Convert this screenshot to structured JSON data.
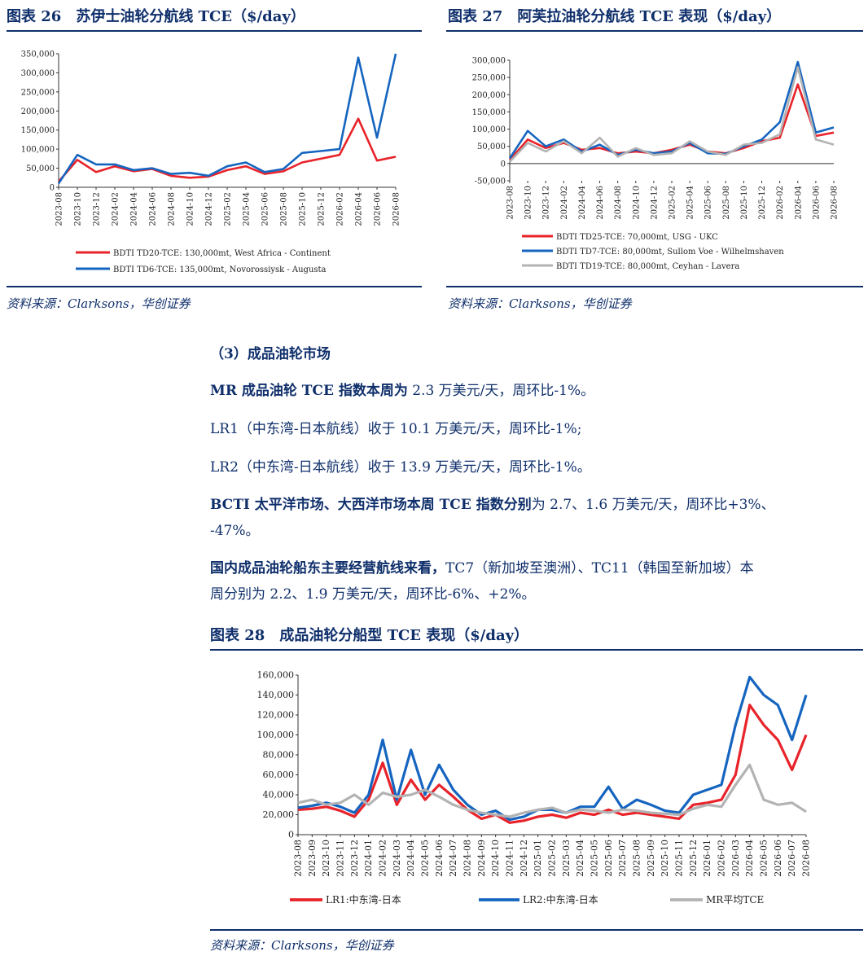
{
  "fig26": {
    "title": "图表 26　苏伊士油轮分航线 TCE（$/day）",
    "source": "资料来源：Clarksons，华创证券",
    "chart_data": {
      "type": "line",
      "x": [
        "2023-08",
        "2023-10",
        "2023-12",
        "2024-02",
        "2024-04",
        "2024-06",
        "2024-08",
        "2024-10",
        "2024-12",
        "2025-02",
        "2025-04",
        "2025-06",
        "2025-08",
        "2025-10",
        "2025-12",
        "2026-02",
        "2026-04",
        "2026-06",
        "2026-08"
      ],
      "yticks": [
        "0",
        "50,000",
        "100,000",
        "150,000",
        "200,000",
        "250,000",
        "300,000",
        "350,000"
      ],
      "ylim": [
        0,
        350000
      ],
      "series": [
        {
          "name": "BDTI TD20-TCE: 130,000mt, West Africa - Continent",
          "color": "#e8232a",
          "values": [
            15000,
            72000,
            40000,
            55000,
            42000,
            48000,
            30000,
            25000,
            28000,
            45000,
            55000,
            35000,
            42000,
            65000,
            75000,
            85000,
            180000,
            70000,
            80000
          ]
        },
        {
          "name": "BDTI TD6-TCE:  135,000mt, Novorossiysk - Augusta",
          "color": "#1565c0",
          "values": [
            10000,
            85000,
            60000,
            60000,
            45000,
            50000,
            35000,
            38000,
            30000,
            55000,
            65000,
            40000,
            48000,
            90000,
            95000,
            100000,
            340000,
            130000,
            350000
          ]
        }
      ]
    }
  },
  "fig27": {
    "title": "图表 27　阿芙拉油轮分航线 TCE 表现（$/day）",
    "source": "资料来源：Clarksons，华创证券",
    "chart_data": {
      "type": "line",
      "x": [
        "2023-08",
        "2023-10",
        "2023-12",
        "2024-02",
        "2024-04",
        "2024-06",
        "2024-08",
        "2024-10",
        "2024-12",
        "2025-02",
        "2025-04",
        "2025-06",
        "2025-08",
        "2025-10",
        "2025-12",
        "2026-02",
        "2026-04",
        "2026-06",
        "2026-08"
      ],
      "yticks": [
        "-50,000",
        "0",
        "50,000",
        "100,000",
        "150,000",
        "200,000",
        "250,000",
        "300,000"
      ],
      "ylim": [
        -50000,
        300000
      ],
      "series": [
        {
          "name": "BDTI TD25-TCE: 70,000mt, USG - UKC",
          "color": "#e8232a",
          "values": [
            10000,
            70000,
            45000,
            60000,
            40000,
            45000,
            30000,
            35000,
            30000,
            40000,
            55000,
            35000,
            30000,
            45000,
            65000,
            75000,
            230000,
            80000,
            90000
          ]
        },
        {
          "name": "BDTI TD7-TCE:  80,000mt, Sullom Voe - Wilhelmshaven",
          "color": "#1565c0",
          "values": [
            15000,
            95000,
            50000,
            70000,
            35000,
            55000,
            25000,
            40000,
            30000,
            35000,
            60000,
            30000,
            28000,
            50000,
            70000,
            120000,
            295000,
            90000,
            105000
          ]
        },
        {
          "name": "BDTI TD19-TCE: 80,000mt, Ceyhan - Lavera",
          "color": "#b3b3b3",
          "values": [
            5000,
            60000,
            35000,
            65000,
            30000,
            75000,
            20000,
            45000,
            25000,
            30000,
            65000,
            35000,
            25000,
            55000,
            60000,
            85000,
            280000,
            70000,
            55000
          ]
        }
      ]
    }
  },
  "section": {
    "heading": "（3）成品油轮市场",
    "p1_bold": "MR 成品油轮 TCE 指数本周为",
    "p1_rest": " 2.3 万美元/天，周环比-1%。",
    "p2": "LR1（中东湾-日本航线）收于 10.1 万美元/天，周环比-1%;",
    "p3": "LR2（中东湾-日本航线）收于 13.9 万美元/天，周环比-1%。",
    "p4_bold": "BCTI 太平洋市场、大西洋市场本周 TCE 指数分别",
    "p4_rest": "为 2.7、1.6 万美元/天，周环比+3%、",
    "p4_line2": "-47%。",
    "p5_bold": "国内成品油轮船东主要经营航线来看，",
    "p5_rest": "TC7（新加坡至澳洲）、TC11（韩国至新加坡）本",
    "p5_line2": "周分别为 2.2、1.9 万美元/天，周环比-6%、+2%。"
  },
  "fig28": {
    "title": "图表 28　成品油轮分船型 TCE 表现（$/day）",
    "source": "资料来源：Clarksons，华创证券",
    "chart_data": {
      "type": "line",
      "x": [
        "2023-08",
        "2023-09",
        "2023-10",
        "2023-11",
        "2023-12",
        "2024-01",
        "2024-02",
        "2024-03",
        "2024-04",
        "2024-05",
        "2024-06",
        "2024-07",
        "2024-08",
        "2024-09",
        "2024-10",
        "2024-11",
        "2024-12",
        "2025-01",
        "2025-02",
        "2025-03",
        "2025-04",
        "2025-05",
        "2025-06",
        "2025-07",
        "2025-08",
        "2025-09",
        "2025-10",
        "2025-11",
        "2025-12",
        "2026-01",
        "2026-02",
        "2026-03",
        "2026-04",
        "2026-05",
        "2026-06",
        "2026-07",
        "2026-08"
      ],
      "yticks": [
        "0",
        "20,000",
        "40,000",
        "60,000",
        "80,000",
        "100,000",
        "120,000",
        "140,000",
        "160,000"
      ],
      "ylim": [
        0,
        160000
      ],
      "series": [
        {
          "name": "LR1:中东湾-日本",
          "color": "#e8232a",
          "values": [
            25000,
            26000,
            28000,
            24000,
            18000,
            35000,
            72000,
            30000,
            55000,
            35000,
            50000,
            38000,
            25000,
            16000,
            20000,
            12000,
            14000,
            18000,
            20000,
            17000,
            22000,
            20000,
            25000,
            20000,
            22000,
            20000,
            18000,
            16000,
            30000,
            32000,
            35000,
            60000,
            130000,
            110000,
            95000,
            65000,
            100000
          ]
        },
        {
          "name": "LR2:中东湾-日本",
          "color": "#1565c0",
          "values": [
            27000,
            29000,
            32000,
            28000,
            22000,
            40000,
            95000,
            35000,
            85000,
            40000,
            70000,
            45000,
            30000,
            20000,
            24000,
            15000,
            18000,
            25000,
            25000,
            22000,
            28000,
            28000,
            48000,
            26000,
            35000,
            30000,
            24000,
            22000,
            40000,
            45000,
            50000,
            110000,
            158000,
            140000,
            130000,
            95000,
            140000
          ]
        },
        {
          "name": "MR平均TCE",
          "color": "#b3b3b3",
          "values": [
            32000,
            35000,
            30000,
            32000,
            40000,
            30000,
            42000,
            38000,
            40000,
            45000,
            38000,
            30000,
            25000,
            22000,
            20000,
            18000,
            22000,
            25000,
            27000,
            22000,
            25000,
            24000,
            22000,
            25000,
            24000,
            22000,
            21000,
            20000,
            26000,
            30000,
            28000,
            50000,
            70000,
            35000,
            30000,
            32000,
            23000
          ]
        }
      ]
    }
  }
}
